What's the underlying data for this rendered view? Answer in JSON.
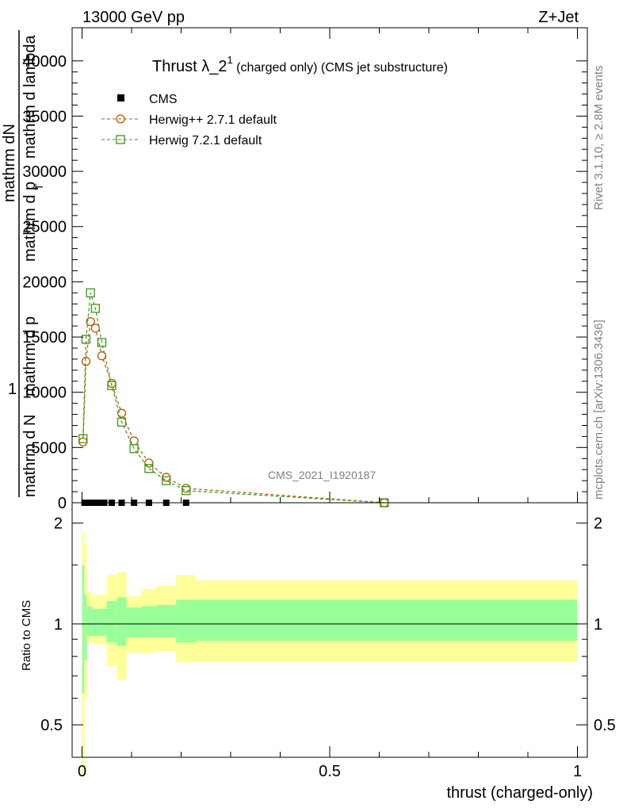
{
  "header": {
    "left": "13000 GeV pp",
    "right": "Z+Jet"
  },
  "side_labels": {
    "rivet": "Rivet 3.1.10, ≥ 2.8M events",
    "mcplots": "mcplots.cern.ch [arXiv:1306.3436]"
  },
  "watermark": "CMS_2021_I1920187",
  "chart_data": [
    {
      "type": "line",
      "title_main": "Thrust λ_2",
      "title_sup": "1",
      "title_rest": " (charged only) (CMS jet substructure)",
      "ylabel_parts": [
        "1",
        "mathrm d N",
        "mathrm dN",
        "mathrm d p",
        "mathrm d p",
        "mathrm d lambda",
        "T"
      ],
      "xlim": [
        -0.02,
        1.02
      ],
      "ylim": [
        0,
        43000
      ],
      "yticks": [
        0,
        5000,
        10000,
        15000,
        20000,
        25000,
        30000,
        35000,
        40000
      ],
      "ytick_labels": [
        "0",
        "5000",
        "10000",
        "15000",
        "20000",
        "25000",
        "30000",
        "35000",
        "40000"
      ],
      "legend_position": "top-left",
      "series": [
        {
          "name": "CMS",
          "color": "#000000",
          "marker": "square-filled",
          "x": [
            0.005,
            0.015,
            0.025,
            0.035,
            0.045,
            0.06,
            0.08,
            0.105,
            0.135,
            0.17,
            0.21
          ],
          "y": [
            0,
            0,
            0,
            0,
            0,
            0,
            0,
            0,
            0,
            0,
            0
          ]
        },
        {
          "name": "Herwig++ 2.7.1 default",
          "color": "#b35900",
          "marker": "circle-open",
          "x": [
            0.002,
            0.008,
            0.017,
            0.027,
            0.04,
            0.06,
            0.08,
            0.105,
            0.135,
            0.17,
            0.21,
            0.61
          ],
          "y": [
            5500,
            12800,
            16400,
            15800,
            13300,
            10800,
            8100,
            5600,
            3600,
            2300,
            1300,
            0
          ]
        },
        {
          "name": "Herwig 7.2.1 default",
          "color": "#3c9614",
          "marker": "square-open",
          "x": [
            0.002,
            0.008,
            0.017,
            0.027,
            0.04,
            0.06,
            0.08,
            0.105,
            0.135,
            0.17,
            0.21,
            0.61
          ],
          "y": [
            5800,
            14800,
            19000,
            17600,
            14500,
            10600,
            7300,
            4900,
            3100,
            2000,
            1100,
            0
          ]
        }
      ]
    },
    {
      "type": "area",
      "ylabel": "Ratio to CMS",
      "xlabel": "thrust (charged-only)",
      "xlim": [
        -0.02,
        1.02
      ],
      "ylim": [
        0.4,
        2.3
      ],
      "yticks": [
        0.5,
        1,
        2
      ],
      "ytick_labels": [
        "0.5",
        "1",
        "2"
      ],
      "xticks": [
        0,
        0.5,
        1
      ],
      "xtick_labels": [
        "0",
        "0.5",
        "1"
      ],
      "bands": {
        "edges": [
          0.0,
          0.005,
          0.01,
          0.02,
          0.03,
          0.05,
          0.07,
          0.09,
          0.12,
          0.15,
          0.19,
          0.23,
          1.0
        ],
        "outer_lo": [
          0.35,
          0.6,
          0.88,
          0.87,
          0.87,
          0.75,
          0.68,
          0.82,
          0.82,
          0.83,
          0.77,
          0.77
        ],
        "outer_hi": [
          1.88,
          1.72,
          1.25,
          1.22,
          1.22,
          1.4,
          1.43,
          1.21,
          1.27,
          1.3,
          1.4,
          1.35
        ],
        "inner_lo": [
          0.62,
          0.78,
          0.92,
          0.92,
          0.92,
          0.88,
          0.86,
          0.91,
          0.91,
          0.91,
          0.88,
          0.89
        ],
        "inner_hi": [
          1.5,
          1.22,
          1.13,
          1.11,
          1.11,
          1.17,
          1.2,
          1.12,
          1.13,
          1.14,
          1.18,
          1.18
        ],
        "outer_color": "#ffff99",
        "inner_color": "#99ff99"
      }
    }
  ]
}
